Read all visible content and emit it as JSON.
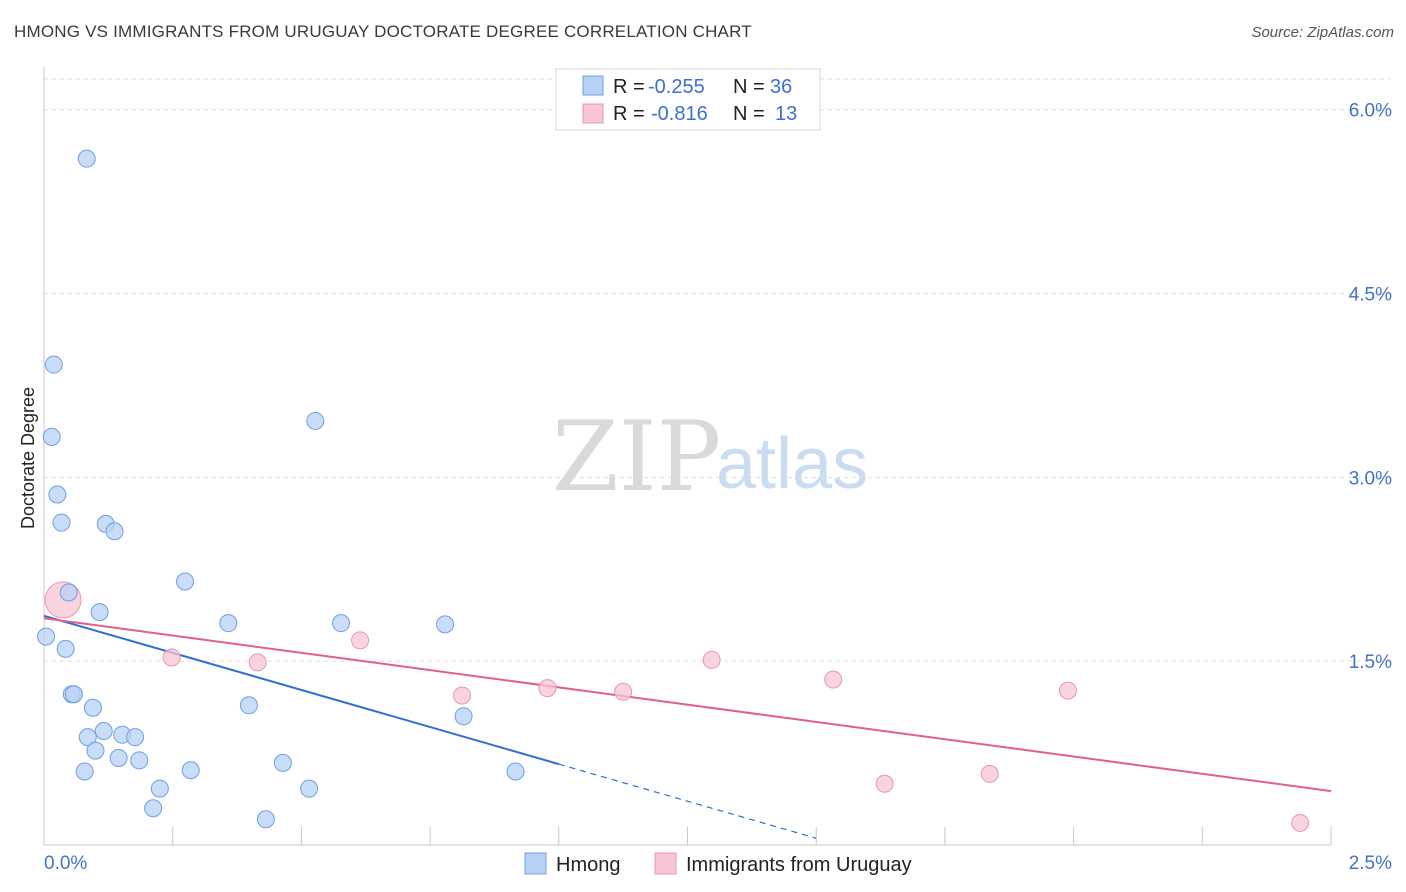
{
  "header": {
    "title": "HMONG VS IMMIGRANTS FROM URUGUAY DOCTORATE DEGREE CORRELATION CHART",
    "source": "Source: ZipAtlas.com"
  },
  "watermark": {
    "zip": "ZIP",
    "atlas": "atlas"
  },
  "colors": {
    "hmong_fill": "#b7d2f5",
    "hmong_stroke": "#6f9fe0",
    "hmong_line": "#2f6fd2",
    "uruguay_fill": "#f7c5d3",
    "uruguay_stroke": "#e897b0",
    "uruguay_line": "#e0608a",
    "grid": "#dddddd",
    "axis_text": "#4472c4"
  },
  "legend": {
    "r_label": "R =",
    "n_label": "N =",
    "rows": [
      {
        "name": "Hmong",
        "r": "-0.255",
        "n": "36"
      },
      {
        "name": "Immigrants from Uruguay",
        "r": "-0.816",
        "n": "13"
      }
    ]
  },
  "chart_data": {
    "type": "scatter",
    "title": "HMONG VS IMMIGRANTS FROM URUGUAY DOCTORATE DEGREE CORRELATION CHART",
    "xlabel": "",
    "ylabel": "Doctorate Degree",
    "xlim": [
      0,
      2.5
    ],
    "ylim": [
      0,
      6.25
    ],
    "x_tick_labels": [
      {
        "value": 0,
        "label": "0.0%"
      },
      {
        "value": 2.5,
        "label": "2.5%"
      }
    ],
    "y_tick_labels": [
      {
        "value": 1.5,
        "label": "1.5%"
      },
      {
        "value": 3.0,
        "label": "3.0%"
      },
      {
        "value": 4.5,
        "label": "4.5%"
      },
      {
        "value": 6.0,
        "label": "6.0%"
      }
    ],
    "grid": true,
    "series": [
      {
        "name": "Hmong",
        "r": -0.255,
        "n": 36,
        "points": [
          {
            "x": 0.083,
            "y": 5.6
          },
          {
            "x": 0.019,
            "y": 3.92
          },
          {
            "x": 0.015,
            "y": 3.33
          },
          {
            "x": 0.527,
            "y": 3.46
          },
          {
            "x": 0.026,
            "y": 2.86
          },
          {
            "x": 0.034,
            "y": 2.63
          },
          {
            "x": 0.12,
            "y": 2.62
          },
          {
            "x": 0.137,
            "y": 2.56
          },
          {
            "x": 0.274,
            "y": 2.15
          },
          {
            "x": 0.048,
            "y": 2.06
          },
          {
            "x": 0.108,
            "y": 1.9
          },
          {
            "x": 0.358,
            "y": 1.81
          },
          {
            "x": 0.577,
            "y": 1.81
          },
          {
            "x": 0.779,
            "y": 1.8
          },
          {
            "x": 0.004,
            "y": 1.7
          },
          {
            "x": 0.042,
            "y": 1.6
          },
          {
            "x": 0.054,
            "y": 1.23
          },
          {
            "x": 0.058,
            "y": 1.23
          },
          {
            "x": 0.095,
            "y": 1.12
          },
          {
            "x": 0.398,
            "y": 1.14
          },
          {
            "x": 0.815,
            "y": 1.05
          },
          {
            "x": 0.116,
            "y": 0.93
          },
          {
            "x": 0.152,
            "y": 0.9
          },
          {
            "x": 0.177,
            "y": 0.88
          },
          {
            "x": 0.085,
            "y": 0.88
          },
          {
            "x": 0.1,
            "y": 0.77
          },
          {
            "x": 0.145,
            "y": 0.71
          },
          {
            "x": 0.185,
            "y": 0.69
          },
          {
            "x": 0.464,
            "y": 0.67
          },
          {
            "x": 0.079,
            "y": 0.6
          },
          {
            "x": 0.285,
            "y": 0.61
          },
          {
            "x": 0.916,
            "y": 0.6
          },
          {
            "x": 0.225,
            "y": 0.46
          },
          {
            "x": 0.515,
            "y": 0.46
          },
          {
            "x": 0.212,
            "y": 0.3
          },
          {
            "x": 0.431,
            "y": 0.21
          }
        ],
        "trend": {
          "x0": 0.0,
          "y0": 1.87,
          "x1": 1.0,
          "y1": 0.66,
          "dashed_to_x": 1.5
        }
      },
      {
        "name": "Immigrants from Uruguay",
        "r": -0.816,
        "n": 13,
        "points": [
          {
            "x": 0.037,
            "y": 2.0,
            "large": true
          },
          {
            "x": 0.614,
            "y": 1.67
          },
          {
            "x": 0.248,
            "y": 1.53
          },
          {
            "x": 0.415,
            "y": 1.49
          },
          {
            "x": 1.297,
            "y": 1.51
          },
          {
            "x": 0.812,
            "y": 1.22
          },
          {
            "x": 0.978,
            "y": 1.28
          },
          {
            "x": 1.125,
            "y": 1.25
          },
          {
            "x": 1.533,
            "y": 1.35
          },
          {
            "x": 1.989,
            "y": 1.26
          },
          {
            "x": 1.633,
            "y": 0.5
          },
          {
            "x": 1.837,
            "y": 0.58
          },
          {
            "x": 2.44,
            "y": 0.18
          }
        ],
        "trend": {
          "x0": 0.0,
          "y0": 1.85,
          "x1": 2.5,
          "y1": 0.44
        }
      }
    ]
  }
}
